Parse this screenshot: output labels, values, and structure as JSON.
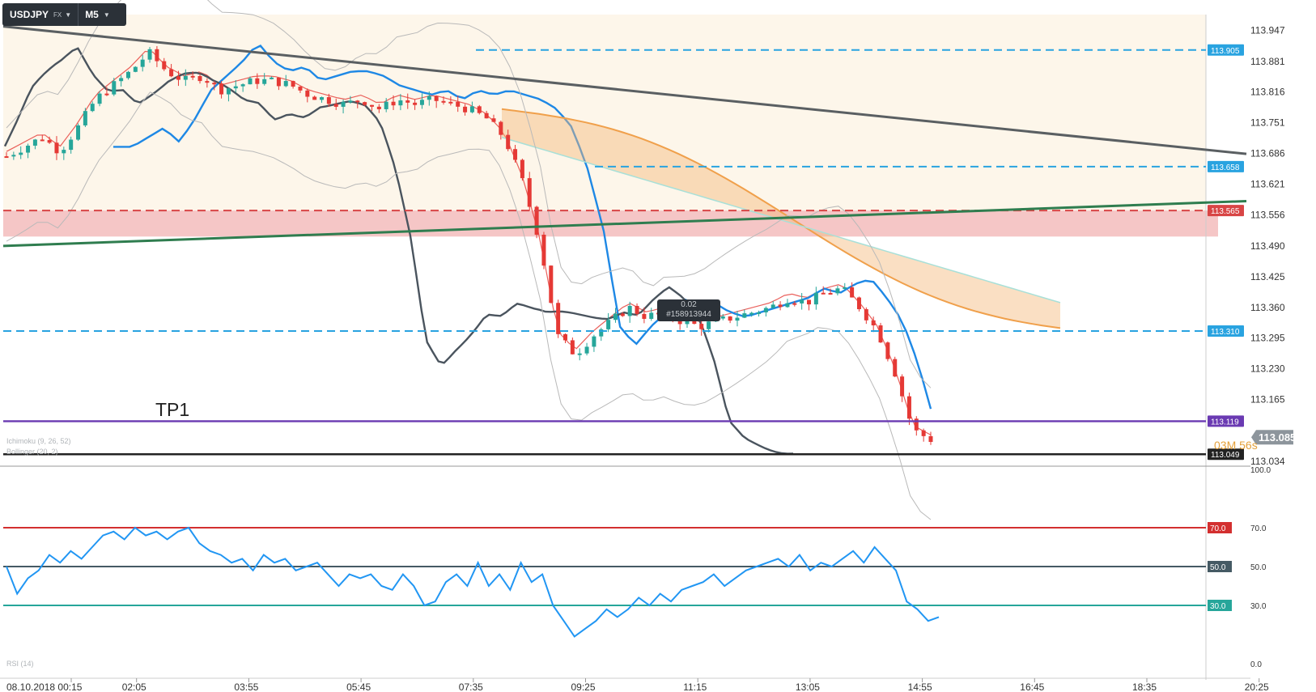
{
  "toolbar": {
    "symbol": "USDJPY",
    "market": "FX",
    "timeframe": "M5"
  },
  "annotation": {
    "tp_label": "TP1"
  },
  "countdown": "03M 56s",
  "order": {
    "value": "0.02",
    "id": "#158913944"
  },
  "legend": {
    "ichimoku": "Ichimoku (9, 26, 52)",
    "bollinger": "Bollinger (20, 2)",
    "rsi": "RSI (14)"
  },
  "colors": {
    "bull": "#26a69a",
    "bear": "#e53935",
    "blue_line": "#1e88e5",
    "dark_line": "#4a545e",
    "kumo_bear": "#f3b87a",
    "kumo_bull": "#a8e0d8",
    "zone_red": "#f2b3b3",
    "rsi_line": "#2196f3"
  },
  "chart_data": [
    {
      "type": "candlestick",
      "symbol": "USDJPY",
      "timeframe": "M5",
      "x_ticks": [
        "08.10.2018 00:15",
        "02:05",
        "03:55",
        "05:45",
        "07:35",
        "09:25",
        "11:15",
        "13:05",
        "14:55",
        "16:45",
        "18:35",
        "20:25"
      ],
      "y_ticks": [
        "113.947",
        "113.881",
        "113.816",
        "113.751",
        "113.686",
        "113.621",
        "113.556",
        "113.490",
        "113.425",
        "113.360",
        "113.295",
        "113.230",
        "113.165",
        "113.034"
      ],
      "ylim": [
        113.034,
        113.98
      ],
      "current_price": "113.085",
      "horizontal_lines": [
        {
          "price": 113.905,
          "label": "113.905",
          "style": "dashed",
          "color": "#29a3e0"
        },
        {
          "price": 113.658,
          "label": "113.658",
          "style": "dashed",
          "color": "#29a3e0"
        },
        {
          "price": 113.565,
          "label": "113.565",
          "style": "dashed",
          "color": "#d84545"
        },
        {
          "price": 113.31,
          "label": "113.310",
          "style": "dashed",
          "color": "#29a3e0"
        },
        {
          "price": 113.119,
          "label": "113.119",
          "style": "solid",
          "color": "#6a3ab2"
        },
        {
          "price": 113.049,
          "label": "113.049",
          "style": "solid",
          "color": "#222222"
        }
      ],
      "zone": {
        "from": 113.51,
        "to": 113.565,
        "color": "#f2b3b3"
      },
      "price_path": [
        113.68,
        113.7,
        113.72,
        113.69,
        113.74,
        113.8,
        113.83,
        113.86,
        113.9,
        113.86,
        113.84,
        113.85,
        113.82,
        113.83,
        113.84,
        113.84,
        113.83,
        113.81,
        113.8,
        113.79,
        113.8,
        113.78,
        113.8,
        113.79,
        113.8,
        113.79,
        113.78,
        113.76,
        113.72,
        113.63,
        113.5,
        113.3,
        113.26,
        113.3,
        113.33,
        113.36,
        113.34,
        113.35,
        113.33,
        113.32,
        113.33,
        113.34,
        113.35,
        113.36,
        113.38,
        113.37,
        113.39,
        113.4,
        113.36,
        113.31,
        113.22,
        113.1,
        113.08
      ]
    },
    {
      "type": "line",
      "name": "RSI (14)",
      "ylim": [
        0,
        100
      ],
      "y_ticks": [
        "100.0",
        "70.0",
        "50.0",
        "30.0",
        "0.0"
      ],
      "levels": [
        {
          "value": 70,
          "label": "70.0",
          "color": "#d32f2f"
        },
        {
          "value": 50,
          "label": "50.0",
          "color": "#455a64"
        },
        {
          "value": 30,
          "label": "30.0",
          "color": "#26a69a"
        }
      ],
      "values": [
        50,
        36,
        44,
        48,
        56,
        52,
        58,
        54,
        60,
        66,
        68,
        64,
        70,
        66,
        68,
        64,
        68,
        70,
        62,
        58,
        56,
        52,
        54,
        48,
        56,
        52,
        54,
        48,
        50,
        52,
        46,
        40,
        46,
        44,
        46,
        40,
        38,
        46,
        40,
        30,
        32,
        42,
        46,
        40,
        52,
        40,
        46,
        38,
        52,
        42,
        46,
        30,
        22,
        14,
        18,
        22,
        28,
        24,
        28,
        34,
        30,
        36,
        32,
        38,
        40,
        42,
        46,
        40,
        44,
        48,
        50,
        52,
        54,
        50,
        56,
        48,
        52,
        50,
        54,
        58,
        52,
        60,
        54,
        48,
        32,
        28,
        22,
        24
      ]
    }
  ]
}
